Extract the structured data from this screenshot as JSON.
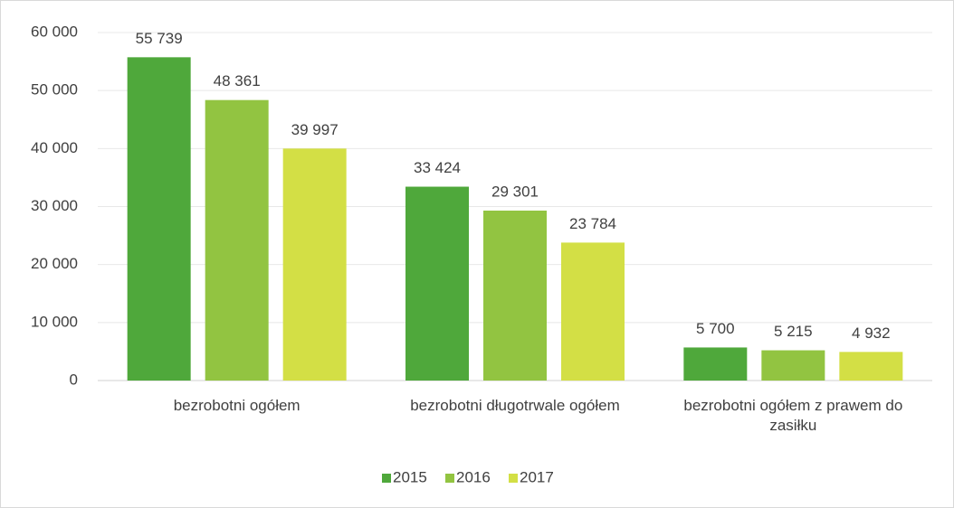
{
  "chart_data": {
    "type": "bar",
    "categories": [
      "bezrobotni ogółem",
      "bezrobotni długotrwale ogółem",
      "bezrobotni ogółem z prawem do zasiłku"
    ],
    "series": [
      {
        "name": "2015",
        "color": "#4fa83b",
        "values": [
          55739,
          33424,
          5700
        ],
        "value_labels": [
          "55 739",
          "33 424",
          "5 700"
        ]
      },
      {
        "name": "2016",
        "color": "#92c441",
        "values": [
          48361,
          29301,
          5215
        ],
        "value_labels": [
          "48 361",
          "29 301",
          "5 215"
        ]
      },
      {
        "name": "2017",
        "color": "#d3df45",
        "values": [
          39997,
          23784,
          4932
        ],
        "value_labels": [
          "39 997",
          "23 784",
          "4 932"
        ]
      }
    ],
    "ylim": [
      0,
      60000
    ],
    "yticks": [
      0,
      {
        "value": 10000,
        "label": "10 000"
      },
      {
        "value": 20000,
        "label": "20 000"
      },
      {
        "value": 30000,
        "label": "30 000"
      },
      {
        "value": 40000,
        "label": "40 000"
      },
      {
        "value": 50000,
        "label": "50 000"
      },
      {
        "value": 60000,
        "label": "60 000"
      }
    ],
    "grid": true,
    "legend": "bottom"
  }
}
